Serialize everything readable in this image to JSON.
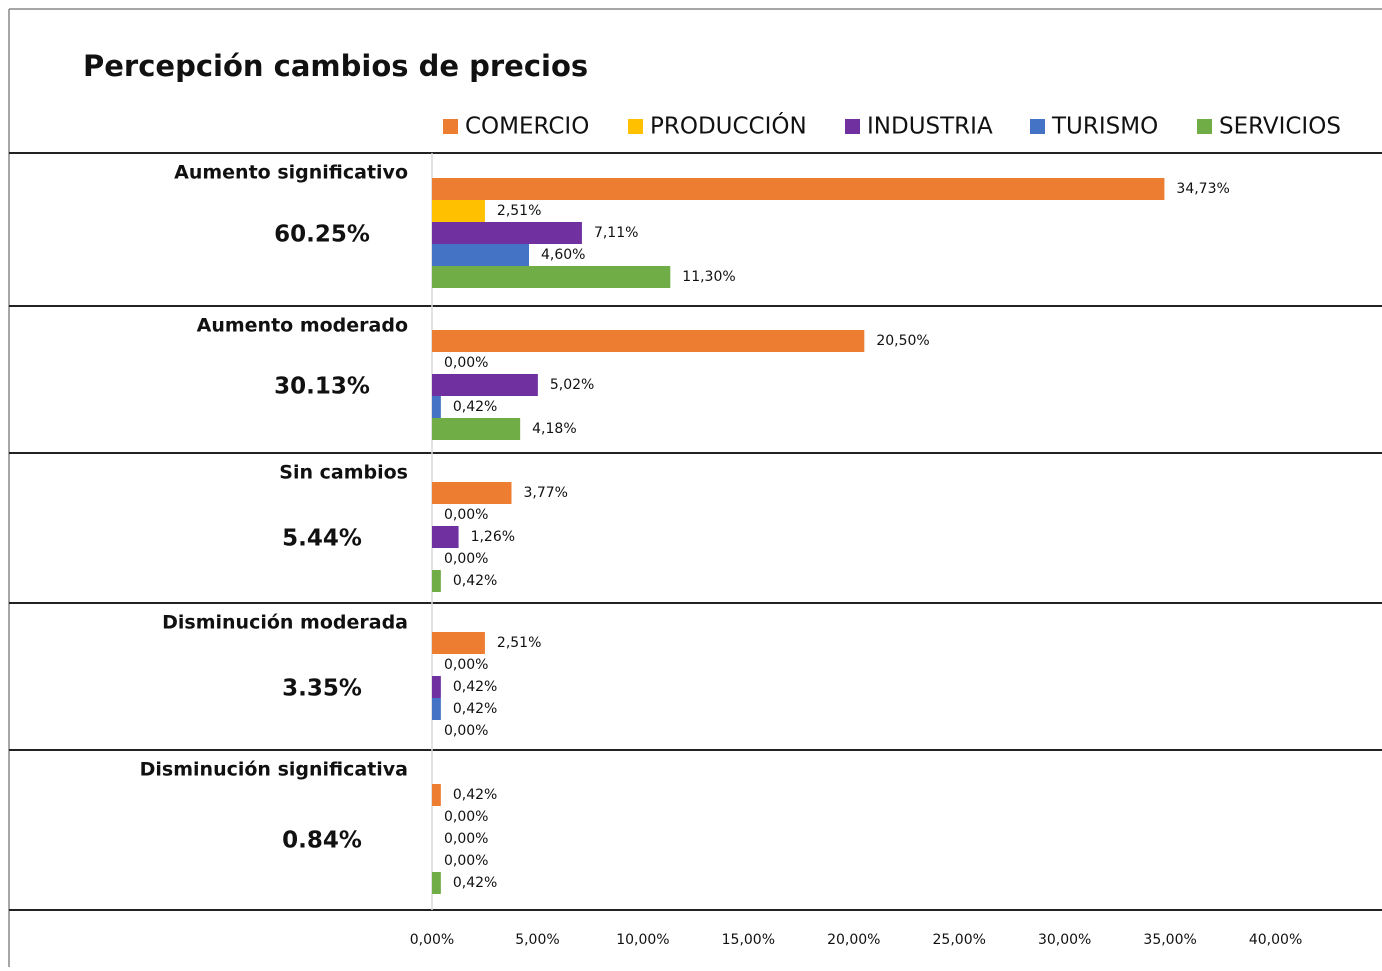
{
  "chart_data": {
    "type": "bar",
    "orientation": "horizontal",
    "title": "Percepción cambios de precios",
    "categories": [
      "Aumento significativo",
      "Aumento moderado",
      "Sin cambios",
      "Disminución moderada",
      "Disminución significativa"
    ],
    "category_totals": [
      "60.25%",
      "30.13%",
      "5.44%",
      "3.35%",
      "0.84%"
    ],
    "series": [
      {
        "name": "COMERCIO",
        "color": "#ed7d31",
        "values": [
          34.73,
          20.5,
          3.77,
          2.51,
          0.42
        ],
        "value_labels": [
          "34,73%",
          "20,50%",
          "3,77%",
          "2,51%",
          "0,42%"
        ]
      },
      {
        "name": "PRODUCCIÓN",
        "color": "#ffc000",
        "values": [
          2.51,
          0,
          0,
          0,
          0
        ],
        "value_labels": [
          "2,51%",
          "0,00%",
          "0,00%",
          "0,00%",
          "0,00%"
        ]
      },
      {
        "name": "INDUSTRIA",
        "color": "#7030a0",
        "values": [
          7.11,
          5.02,
          1.26,
          0.42,
          0
        ],
        "value_labels": [
          "7,11%",
          "5,02%",
          "1,26%",
          "0,42%",
          "0,00%"
        ]
      },
      {
        "name": "TURISMO",
        "color": "#4472c4",
        "values": [
          4.6,
          0.42,
          0,
          0.42,
          0
        ],
        "value_labels": [
          "4,60%",
          "0,42%",
          "0,00%",
          "0,42%",
          "0,00%"
        ]
      },
      {
        "name": "SERVICIOS",
        "color": "#70ad47",
        "values": [
          11.3,
          4.18,
          0.42,
          0,
          0.42
        ],
        "value_labels": [
          "11,30%",
          "4,18%",
          "0,42%",
          "0,00%",
          "0,42%"
        ]
      }
    ],
    "xlim": [
      0,
      45
    ],
    "xticks": [
      {
        "value": 0,
        "label": "0,00%"
      },
      {
        "value": 5,
        "label": "5,00%"
      },
      {
        "value": 10,
        "label": "10,00%"
      },
      {
        "value": 15,
        "label": "15,00%"
      },
      {
        "value": 20,
        "label": "20,00%"
      },
      {
        "value": 25,
        "label": "25,00%"
      },
      {
        "value": 30,
        "label": "30,00%"
      },
      {
        "value": 35,
        "label": "35,00%"
      },
      {
        "value": 40,
        "label": "40,00%"
      }
    ],
    "legend": "top",
    "grid": false
  }
}
